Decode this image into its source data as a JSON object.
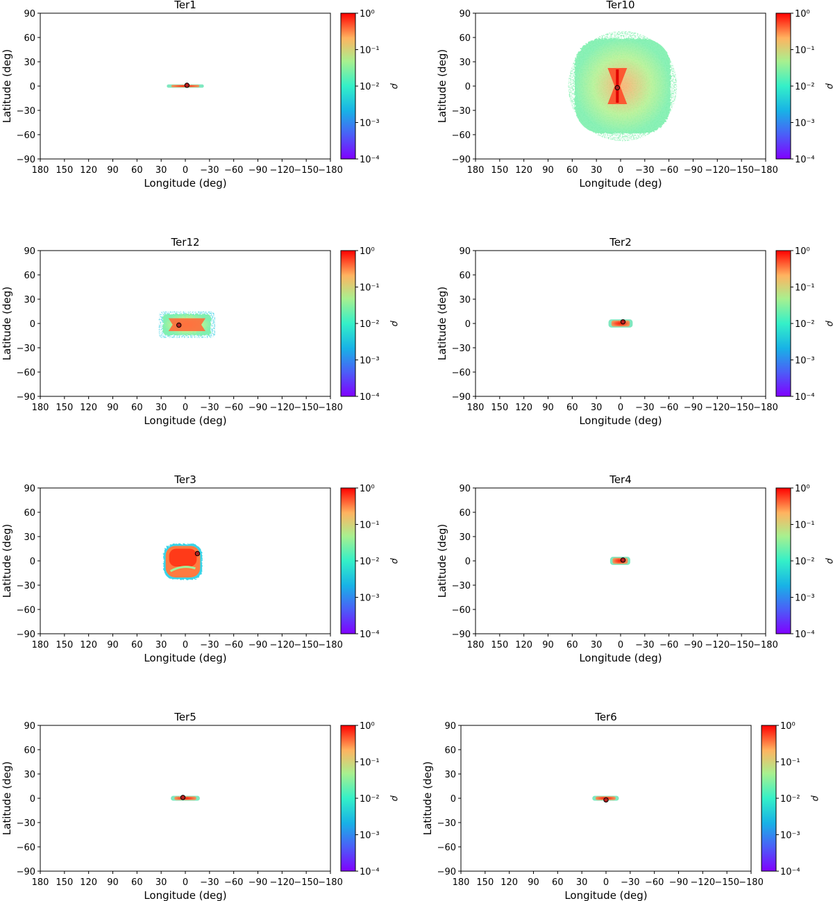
{
  "chart_data": [
    {
      "type": "heatmap",
      "title": "Ter1",
      "xlabel": "Longitude (deg)",
      "ylabel": "Latitude (deg)",
      "xlim": [
        180,
        -180
      ],
      "ylim": [
        -90,
        90
      ],
      "xticks": [
        "180",
        "150",
        "120",
        "90",
        "60",
        "30",
        "0",
        "−30",
        "−60",
        "−90",
        "−120",
        "−150",
        "−180"
      ],
      "yticks": [
        "90",
        "60",
        "30",
        "0",
        "−30",
        "−60",
        "−90"
      ],
      "colorbar": {
        "label": "ρ",
        "ticks": [
          "10⁰",
          "10⁻¹",
          "10⁻²",
          "10⁻³",
          "10⁻⁴"
        ],
        "range": [
          0.0001,
          1
        ],
        "scale": "log"
      },
      "cluster_center": {
        "lon": -2,
        "lat": 1
      },
      "distribution": {
        "lon_range": [
          23,
          -23
        ],
        "lat_range": [
          -2,
          2
        ],
        "shape": "thin horizontal band"
      }
    },
    {
      "type": "heatmap",
      "title": "Ter10",
      "xlabel": "Longitude (deg)",
      "ylabel": "Latitude (deg)",
      "xlim": [
        180,
        -180
      ],
      "ylim": [
        -90,
        90
      ],
      "xticks": [
        "180",
        "150",
        "120",
        "90",
        "60",
        "30",
        "0",
        "−30",
        "−60",
        "−90",
        "−120",
        "−150",
        "−180"
      ],
      "yticks": [
        "90",
        "60",
        "30",
        "0",
        "−30",
        "−60",
        "−90"
      ],
      "colorbar": {
        "label": "ρ",
        "ticks": [
          "10⁰",
          "10⁻¹",
          "10⁻²",
          "10⁻³",
          "10⁻⁴"
        ],
        "range": [
          0.0001,
          1
        ],
        "scale": "log"
      },
      "cluster_center": {
        "lon": 4,
        "lat": -2
      },
      "distribution": {
        "lon_range": [
          65,
          -70
        ],
        "lat_range": [
          -68,
          68
        ],
        "shape": "broad diffuse cloud with dense X-shaped core"
      }
    },
    {
      "type": "heatmap",
      "title": "Ter12",
      "xlabel": "Longitude (deg)",
      "ylabel": "Latitude (deg)",
      "xlim": [
        180,
        -180
      ],
      "ylim": [
        -90,
        90
      ],
      "xticks": [
        "180",
        "150",
        "120",
        "90",
        "60",
        "30",
        "0",
        "−30",
        "−60",
        "−90",
        "−120",
        "−150",
        "−180"
      ],
      "yticks": [
        "90",
        "60",
        "30",
        "0",
        "−30",
        "−60",
        "−90"
      ],
      "colorbar": {
        "label": "ρ",
        "ticks": [
          "10⁰",
          "10⁻¹",
          "10⁻²",
          "10⁻³",
          "10⁻⁴"
        ],
        "range": [
          0.0001,
          1
        ],
        "scale": "log"
      },
      "cluster_center": {
        "lon": 8,
        "lat": -2
      },
      "distribution": {
        "lon_range": [
          33,
          -37
        ],
        "lat_range": [
          -18,
          15
        ],
        "shape": "box-shaped patch"
      }
    },
    {
      "type": "heatmap",
      "title": "Ter2",
      "xlabel": "Longitude (deg)",
      "ylabel": "Latitude (deg)",
      "xlim": [
        180,
        -180
      ],
      "ylim": [
        -90,
        90
      ],
      "xticks": [
        "180",
        "150",
        "120",
        "90",
        "60",
        "30",
        "0",
        "−30",
        "−60",
        "−90",
        "−120",
        "−150",
        "−180"
      ],
      "yticks": [
        "90",
        "60",
        "30",
        "0",
        "−30",
        "−60",
        "−90"
      ],
      "colorbar": {
        "label": "ρ",
        "ticks": [
          "10⁰",
          "10⁻¹",
          "10⁻²",
          "10⁻³",
          "10⁻⁴"
        ],
        "range": [
          0.0001,
          1
        ],
        "scale": "log"
      },
      "cluster_center": {
        "lon": -3,
        "lat": 2
      },
      "distribution": {
        "lon_range": [
          15,
          -15
        ],
        "lat_range": [
          -5,
          5
        ],
        "shape": "small compact patch"
      }
    },
    {
      "type": "heatmap",
      "title": "Ter3",
      "xlabel": "Longitude (deg)",
      "ylabel": "Latitude (deg)",
      "xlim": [
        180,
        -180
      ],
      "ylim": [
        -90,
        90
      ],
      "xticks": [
        "180",
        "150",
        "120",
        "90",
        "60",
        "30",
        "0",
        "−30",
        "−60",
        "−90",
        "−120",
        "−150",
        "−180"
      ],
      "yticks": [
        "90",
        "60",
        "30",
        "0",
        "−30",
        "−60",
        "−90"
      ],
      "colorbar": {
        "label": "ρ",
        "ticks": [
          "10⁰",
          "10⁻¹",
          "10⁻²",
          "10⁻³",
          "10⁻⁴"
        ],
        "range": [
          0.0001,
          1
        ],
        "scale": "log"
      },
      "cluster_center": {
        "lon": -15,
        "lat": 9
      },
      "distribution": {
        "lon_range": [
          27,
          -21
        ],
        "lat_range": [
          -23,
          21
        ],
        "shape": "rounded square"
      }
    },
    {
      "type": "heatmap",
      "title": "Ter4",
      "xlabel": "Longitude (deg)",
      "ylabel": "Latitude (deg)",
      "xlim": [
        180,
        -180
      ],
      "ylim": [
        -90,
        90
      ],
      "xticks": [
        "180",
        "150",
        "120",
        "90",
        "60",
        "30",
        "0",
        "−30",
        "−60",
        "−90",
        "−120",
        "−150",
        "−180"
      ],
      "yticks": [
        "90",
        "60",
        "30",
        "0",
        "−30",
        "−60",
        "−90"
      ],
      "colorbar": {
        "label": "ρ",
        "ticks": [
          "10⁰",
          "10⁻¹",
          "10⁻²",
          "10⁻³",
          "10⁻⁴"
        ],
        "range": [
          0.0001,
          1
        ],
        "scale": "log"
      },
      "cluster_center": {
        "lon": -3,
        "lat": 1
      },
      "distribution": {
        "lon_range": [
          13,
          -12
        ],
        "lat_range": [
          -5,
          5
        ],
        "shape": "small compact patch"
      }
    },
    {
      "type": "heatmap",
      "title": "Ter5",
      "xlabel": "Longitude (deg)",
      "ylabel": "Latitude (deg)",
      "xlim": [
        180,
        -180
      ],
      "ylim": [
        -90,
        90
      ],
      "xticks": [
        "180",
        "150",
        "120",
        "90",
        "60",
        "30",
        "0",
        "−30",
        "−60",
        "−90",
        "−120",
        "−150",
        "−180"
      ],
      "yticks": [
        "90",
        "60",
        "30",
        "0",
        "−30",
        "−60",
        "−90"
      ],
      "colorbar": {
        "label": "ρ",
        "ticks": [
          "10⁰",
          "10⁻¹",
          "10⁻²",
          "10⁻³",
          "10⁻⁴"
        ],
        "range": [
          0.0001,
          1
        ],
        "scale": "log"
      },
      "cluster_center": {
        "lon": 3,
        "lat": 1
      },
      "distribution": {
        "lon_range": [
          18,
          -18
        ],
        "lat_range": [
          -3,
          3
        ],
        "shape": "narrow band"
      }
    },
    {
      "type": "heatmap",
      "title": "Ter6",
      "xlabel": "Longitude (deg)",
      "ylabel": "Latitude (deg)",
      "xlim": [
        180,
        -180
      ],
      "ylim": [
        -90,
        90
      ],
      "xticks": [
        "180",
        "150",
        "120",
        "90",
        "60",
        "30",
        "0",
        "−30",
        "−60",
        "−90",
        "−120",
        "−150",
        "−180"
      ],
      "yticks": [
        "90",
        "60",
        "30",
        "0",
        "−30",
        "−60",
        "−90"
      ],
      "colorbar": {
        "label": "ρ",
        "ticks": [
          "10⁰",
          "10⁻¹",
          "10⁻²",
          "10⁻³",
          "10⁻⁴"
        ],
        "range": [
          0.0001,
          1
        ],
        "scale": "log"
      },
      "cluster_center": {
        "lon": 0,
        "lat": -2
      },
      "distribution": {
        "lon_range": [
          17,
          -16
        ],
        "lat_range": [
          -3,
          3
        ],
        "shape": "narrow band"
      }
    }
  ]
}
